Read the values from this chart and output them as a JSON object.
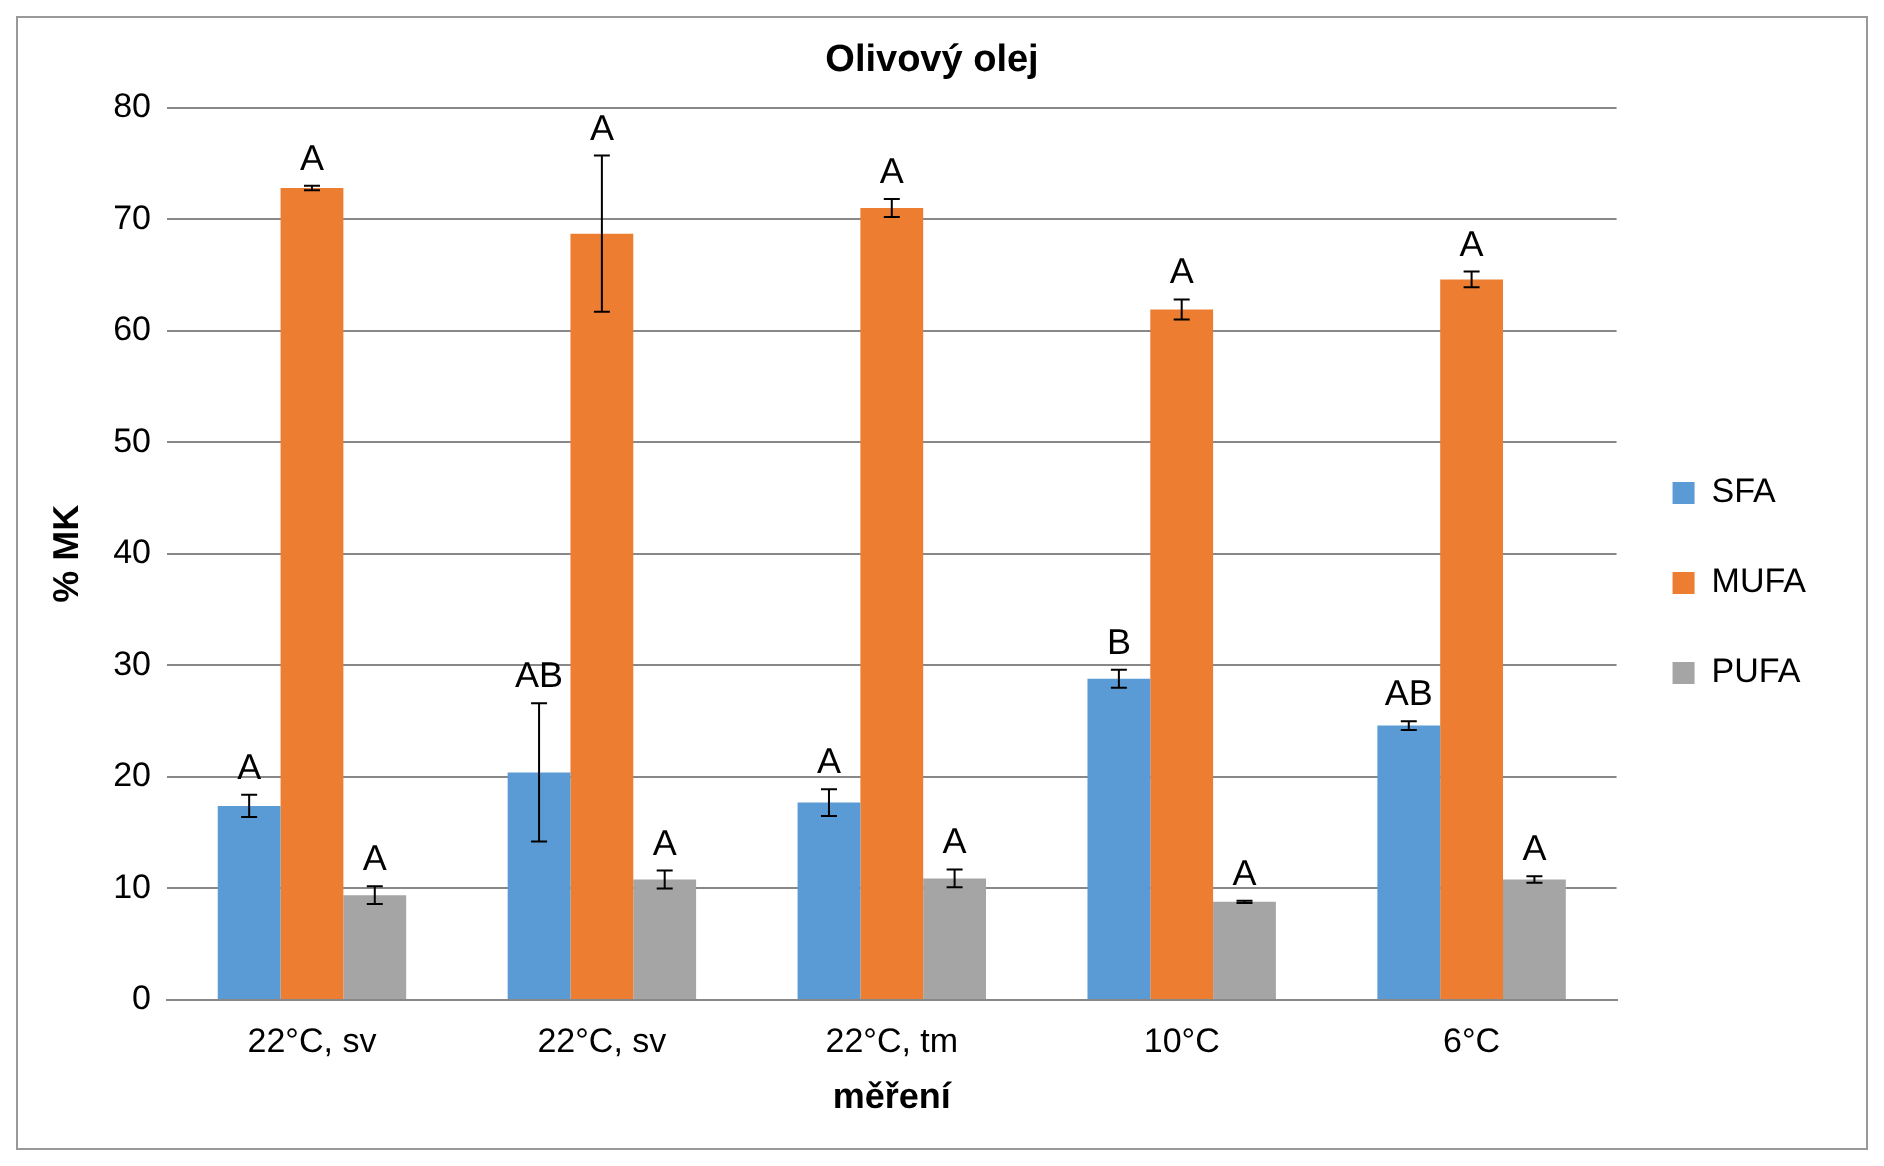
{
  "chart_data": {
    "type": "bar",
    "title": "Olivový olej",
    "xlabel": "měření",
    "ylabel": "% MK",
    "categories": [
      "22°C, sv",
      "22°C, sv",
      "22°C, tm",
      "10°C",
      "6°C"
    ],
    "series": [
      {
        "name": "SFA",
        "color": "#5b9bd5",
        "values": [
          17.4,
          20.4,
          17.7,
          28.8,
          24.6
        ],
        "errors": [
          1.0,
          6.2,
          1.2,
          0.8,
          0.4
        ],
        "value_labels": [
          "A",
          "AB",
          "A",
          "B",
          "AB"
        ]
      },
      {
        "name": "MUFA",
        "color": "#ed7d31",
        "values": [
          72.8,
          68.7,
          71.0,
          61.9,
          64.6
        ],
        "errors": [
          0.2,
          7.0,
          0.8,
          0.9,
          0.7
        ],
        "value_labels": [
          "A",
          "A",
          "A",
          "A",
          "A"
        ]
      },
      {
        "name": "PUFA",
        "color": "#a5a5a5",
        "values": [
          9.4,
          10.8,
          10.9,
          8.8,
          10.8
        ],
        "errors": [
          0.8,
          0.8,
          0.8,
          0.1,
          0.3
        ],
        "value_labels": [
          "A",
          "A",
          "A",
          "A",
          "A"
        ]
      }
    ],
    "ylim": [
      0,
      80
    ],
    "yticks": [
      0,
      10,
      20,
      30,
      40,
      50,
      60,
      70,
      80
    ],
    "grid": "y",
    "legend": "right"
  }
}
